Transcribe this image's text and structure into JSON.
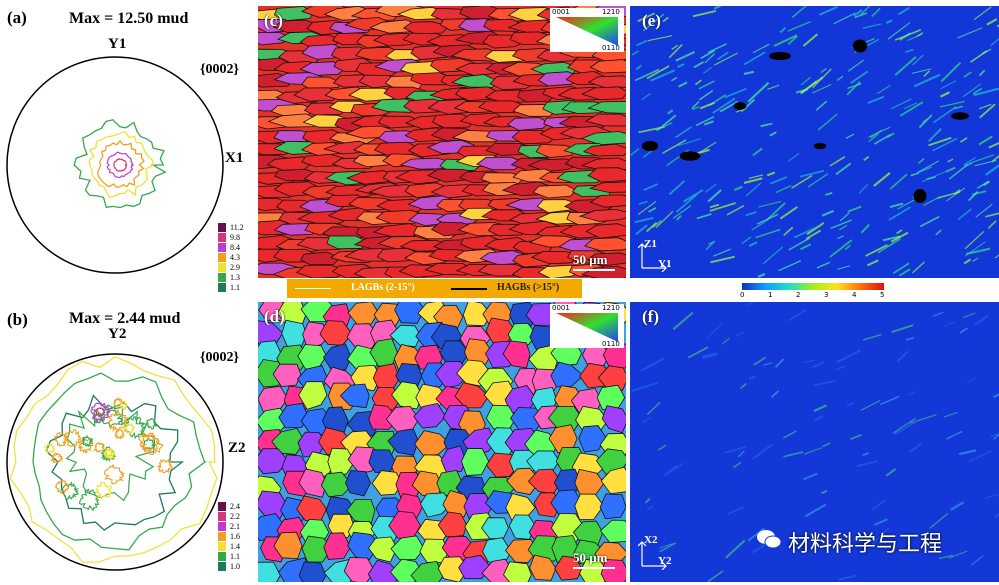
{
  "panels": {
    "a": {
      "label": "(a)",
      "max": "Max = 12.50 mud",
      "top_axis": "Y1",
      "side_axis": "X1",
      "pole": "{0002}",
      "levels": [
        "11.2",
        "9.8",
        "8.4",
        "4.3",
        "2.9",
        "1.3",
        "1.1"
      ]
    },
    "b": {
      "label": "(b)",
      "max": "Max = 2.44 mud",
      "top_axis": "Y2",
      "side_axis": "Z2",
      "pole": "{0002}",
      "levels": [
        "2.4",
        "2.2",
        "2.1",
        "1.6",
        "1.4",
        "1.1",
        "1.0"
      ]
    },
    "c": {
      "label": "(c)",
      "scale": "50 μm"
    },
    "d": {
      "label": "(d)",
      "scale": "50 μm"
    },
    "e": {
      "label": "(e)",
      "axis_v": "Z1",
      "axis_h": "Y1"
    },
    "f": {
      "label": "(f)",
      "axis_v": "X2",
      "axis_h": "Y2"
    }
  },
  "ipf_key": {
    "corner_top_left": "0001",
    "corner_top_right": "1210",
    "corner_bottom_right": "0110"
  },
  "boundary_legend": {
    "lagb": "LAGBs (2-15°)",
    "hagb": "HAGBs (>15°)"
  },
  "colorbar": {
    "ticks": [
      "0",
      "1",
      "2",
      "3",
      "4",
      "5"
    ]
  },
  "watermark": "材料科学与工程",
  "level_colors": [
    "#6b0f4a",
    "#d6367a",
    "#c03bd0",
    "#f0a020",
    "#f0e030",
    "#36a84a",
    "#1f7a5a"
  ]
}
